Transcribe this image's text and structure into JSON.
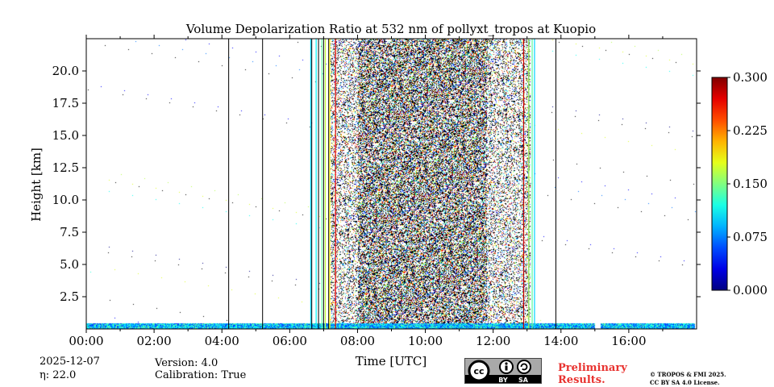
{
  "chart_data": {
    "type": "heatmap",
    "title": "Volume Depolarization Ratio at 532 nm of pollyxt_tropos at Kuopio",
    "xlabel": "Time [UTC]",
    "ylabel": "Height [km]",
    "xlim": [
      0,
      18
    ],
    "ylim": [
      0,
      22.5
    ],
    "x_ticks": [
      0,
      2,
      4,
      6,
      8,
      10,
      12,
      14,
      16
    ],
    "x_tick_labels": [
      "00:00",
      "02:00",
      "04:00",
      "06:00",
      "08:00",
      "10:00",
      "12:00",
      "14:00",
      "16:00"
    ],
    "y_ticks": [
      2.5,
      5.0,
      7.5,
      10.0,
      12.5,
      15.0,
      17.5,
      20.0
    ],
    "y_tick_labels": [
      "2.5",
      "5.0",
      "7.5",
      "10.0",
      "12.5",
      "15.0",
      "17.5",
      "20.0"
    ],
    "colorbar": {
      "range": [
        0.0,
        0.3
      ],
      "ticks": [
        0.0,
        0.075,
        0.15,
        0.225,
        0.3
      ],
      "tick_labels": [
        "0.000",
        "0.075",
        "0.150",
        "0.225",
        "0.300"
      ],
      "colormap": "jet"
    },
    "noisy_period_hours": [
      7.2,
      13.1
    ],
    "dense_noise_hours": [
      8.0,
      11.8
    ],
    "surface_layer": {
      "top_km": 0.4,
      "end_hour": 17.95,
      "gap_hours": [
        15.0,
        15.15
      ]
    },
    "vertical_lines_hours": [
      4.2,
      5.2,
      6.65,
      6.85,
      7.0,
      7.15,
      13.85,
      13.05,
      13.15
    ],
    "colored_lines": [
      {
        "hour": 6.62,
        "value": 0.1
      },
      {
        "hour": 6.78,
        "value": 0.11
      },
      {
        "hour": 6.95,
        "value": 0.14
      },
      {
        "hour": 7.05,
        "value": 0.17
      },
      {
        "hour": 7.18,
        "value": 0.19
      },
      {
        "hour": 7.35,
        "value": 0.27
      },
      {
        "hour": 12.9,
        "value": 0.28
      },
      {
        "hour": 13.05,
        "value": 0.16
      },
      {
        "hour": 13.15,
        "value": 0.14
      },
      {
        "hour": 13.22,
        "value": 0.1
      }
    ]
  },
  "footer": {
    "date": "2025-12-07",
    "eta": "η: 22.0",
    "version": "Version: 4.0",
    "calibration": "Calibration: True",
    "preliminary_line1": "Preliminary",
    "preliminary_line2": "Results.",
    "copyright_line1": "© TROPOS & FMI 2025.",
    "copyright_line2": "CC BY SA 4.0 License.",
    "license_badge": "CC BY SA"
  },
  "colors": {
    "prelim": "#e8322f"
  }
}
